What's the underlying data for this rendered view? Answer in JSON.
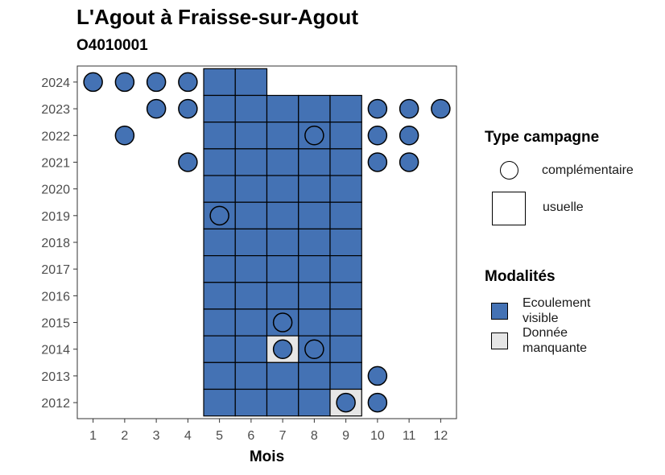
{
  "title": "L'Agout à Fraisse-sur-Agout",
  "subtitle": "O4010001",
  "colors": {
    "ecoulement_visible": "#4472b4",
    "donnee_manquante": "#e6e6e6",
    "outline": "#000000",
    "panel_border": "#333333"
  },
  "legend": {
    "type_title": "Type campagne",
    "type_items": [
      {
        "label": "complémentaire",
        "shape": "circle"
      },
      {
        "label": "usuelle",
        "shape": "square"
      }
    ],
    "modalites_title": "Modalités",
    "modalites_items": [
      {
        "label_line1": "Ecoulement",
        "label_line2": "visible",
        "color": "#4472b4"
      },
      {
        "label_line1": "Donnée",
        "label_line2": "manquante",
        "color": "#e6e6e6"
      }
    ]
  },
  "chart_data": {
    "type": "scatter",
    "title": "L'Agout à Fraisse-sur-Agout",
    "subtitle": "O4010001",
    "xlabel": "Mois",
    "ylabel": "",
    "x_ticks": [
      1,
      2,
      3,
      4,
      5,
      6,
      7,
      8,
      9,
      10,
      11,
      12
    ],
    "y_ticks": [
      2012,
      2013,
      2014,
      2015,
      2016,
      2017,
      2018,
      2019,
      2020,
      2021,
      2022,
      2023,
      2024
    ],
    "xlim": [
      0.5,
      12.5
    ],
    "ylim": [
      2011.4,
      2024.6
    ],
    "grid": false,
    "legend_position": "right",
    "usuelle": [
      {
        "year": 2024,
        "months": [
          5,
          6
        ],
        "modalite": "Ecoulement visible"
      },
      {
        "year": 2023,
        "months": [
          5,
          6,
          7,
          8,
          9
        ],
        "modalite": "Ecoulement visible"
      },
      {
        "year": 2022,
        "months": [
          5,
          6,
          7,
          8,
          9
        ],
        "modalite": "Ecoulement visible"
      },
      {
        "year": 2021,
        "months": [
          5,
          6,
          7,
          8,
          9
        ],
        "modalite": "Ecoulement visible"
      },
      {
        "year": 2020,
        "months": [
          5,
          6,
          7,
          8,
          9
        ],
        "modalite": "Ecoulement visible"
      },
      {
        "year": 2019,
        "months": [
          5,
          6,
          7,
          8,
          9
        ],
        "modalite": "Ecoulement visible"
      },
      {
        "year": 2018,
        "months": [
          5,
          6,
          7,
          8,
          9
        ],
        "modalite": "Ecoulement visible"
      },
      {
        "year": 2017,
        "months": [
          5,
          6,
          7,
          8,
          9
        ],
        "modalite": "Ecoulement visible"
      },
      {
        "year": 2016,
        "months": [
          5,
          6,
          7,
          8,
          9
        ],
        "modalite": "Ecoulement visible"
      },
      {
        "year": 2015,
        "months": [
          5,
          6,
          7,
          8,
          9
        ],
        "modalite": "Ecoulement visible"
      },
      {
        "year": 2014,
        "months": [
          5,
          6,
          8,
          9
        ],
        "modalite": "Ecoulement visible"
      },
      {
        "year": 2014,
        "months": [
          7
        ],
        "modalite": "Donnée manquante"
      },
      {
        "year": 2013,
        "months": [
          5,
          6,
          7,
          8,
          9
        ],
        "modalite": "Ecoulement visible"
      },
      {
        "year": 2012,
        "months": [
          5,
          6,
          7,
          8
        ],
        "modalite": "Ecoulement visible"
      },
      {
        "year": 2012,
        "months": [
          9
        ],
        "modalite": "Donnée manquante"
      }
    ],
    "complementaire": [
      {
        "year": 2024,
        "months": [
          1,
          2,
          3,
          4
        ],
        "modalite": "Ecoulement visible"
      },
      {
        "year": 2023,
        "months": [
          3,
          4,
          10,
          11,
          12
        ],
        "modalite": "Ecoulement visible"
      },
      {
        "year": 2022,
        "months": [
          2,
          8,
          10,
          11
        ],
        "modalite": "Ecoulement visible"
      },
      {
        "year": 2021,
        "months": [
          4,
          10,
          11
        ],
        "modalite": "Ecoulement visible"
      },
      {
        "year": 2019,
        "months": [
          5
        ],
        "modalite": "Ecoulement visible"
      },
      {
        "year": 2015,
        "months": [
          7
        ],
        "modalite": "Ecoulement visible"
      },
      {
        "year": 2014,
        "months": [
          7,
          8
        ],
        "modalite": "Ecoulement visible"
      },
      {
        "year": 2013,
        "months": [
          10
        ],
        "modalite": "Ecoulement visible"
      },
      {
        "year": 2012,
        "months": [
          9,
          10
        ],
        "modalite": "Ecoulement visible"
      }
    ]
  }
}
